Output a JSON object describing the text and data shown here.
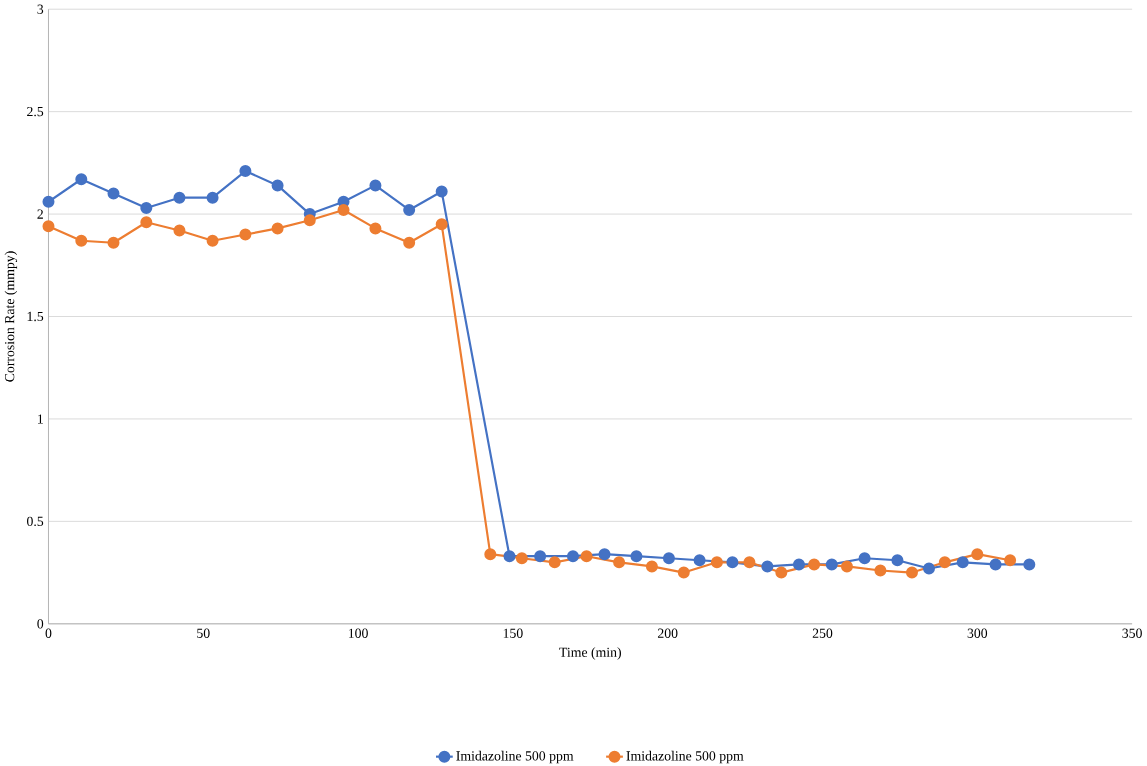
{
  "chart_data": {
    "type": "line",
    "xlabel": "Time (min)",
    "ylabel": "Corrosion Rate (mmpy)",
    "xlim": [
      0,
      350
    ],
    "xticks": [
      0,
      50,
      100,
      150,
      200,
      250,
      300,
      350
    ],
    "ylim": [
      0,
      3
    ],
    "yticks": [
      0,
      0.5,
      1,
      1.5,
      2,
      2.5,
      3
    ],
    "grid": "y",
    "legend": "bottom",
    "marker": "circle",
    "line_style": "solid",
    "series": [
      {
        "name": "Imidazoline 500 ppm",
        "color": "#4472c4",
        "x": [
          0,
          10.6,
          21,
          31.6,
          42.3,
          53,
          63.6,
          74,
          84.4,
          95.3,
          105.6,
          116.5,
          127,
          148.9,
          158.8,
          169.4,
          179.6,
          189.9,
          200.4,
          210.3,
          220.9,
          232.2,
          242.4,
          253,
          263.6,
          274.2,
          284.4,
          295.3,
          305.9,
          316.8
        ],
        "values": [
          2.06,
          2.17,
          2.1,
          2.03,
          2.08,
          2.08,
          2.21,
          2.14,
          2.0,
          2.06,
          2.14,
          2.02,
          2.11,
          0.33,
          0.33,
          0.33,
          0.34,
          0.33,
          0.32,
          0.31,
          0.3,
          0.28,
          0.29,
          0.29,
          0.32,
          0.31,
          0.27,
          0.3,
          0.29,
          0.29
        ]
      },
      {
        "name": "Imidazoline 500 ppm",
        "color": "#ed7d31",
        "x": [
          0,
          10.6,
          21,
          31.6,
          42.3,
          53,
          63.6,
          74,
          84.4,
          95.3,
          105.6,
          116.5,
          127,
          142.7,
          152.9,
          163.5,
          173.8,
          184.3,
          194.9,
          205.2,
          215.9,
          226.4,
          236.7,
          247.3,
          257.9,
          268.7,
          278.9,
          289.5,
          300,
          310.6
        ],
        "values": [
          1.94,
          1.87,
          1.86,
          1.96,
          1.92,
          1.87,
          1.9,
          1.93,
          1.97,
          2.02,
          1.93,
          1.86,
          1.95,
          0.34,
          0.32,
          0.3,
          0.33,
          0.3,
          0.28,
          0.25,
          0.3,
          0.3,
          0.25,
          0.29,
          0.28,
          0.26,
          0.25,
          0.3,
          0.34,
          0.31
        ]
      }
    ]
  }
}
